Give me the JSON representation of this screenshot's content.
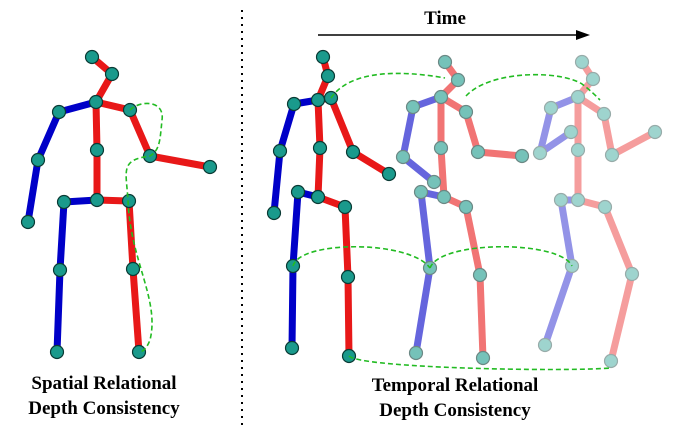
{
  "time_label": "Time",
  "captions": {
    "spatial_line1": "Spatial Relational",
    "spatial_line2": "Depth Consistency",
    "temporal_line1": "Temporal Relational",
    "temporal_line2": "Depth Consistency"
  },
  "colors": {
    "left_limb": "#0000c8",
    "right_limb": "#e81818",
    "joint_fill": "#1a9a8c",
    "joint_stroke": "#0a3a34",
    "dashed_link": "#22bb22",
    "divider": "#000000"
  },
  "frames": [
    {
      "name": "spatial-pose",
      "opacity": 1.0
    },
    {
      "name": "temporal-pose-1",
      "opacity": 1.0
    },
    {
      "name": "temporal-pose-2",
      "opacity": 0.6
    },
    {
      "name": "temporal-pose-3",
      "opacity": 0.42
    }
  ]
}
